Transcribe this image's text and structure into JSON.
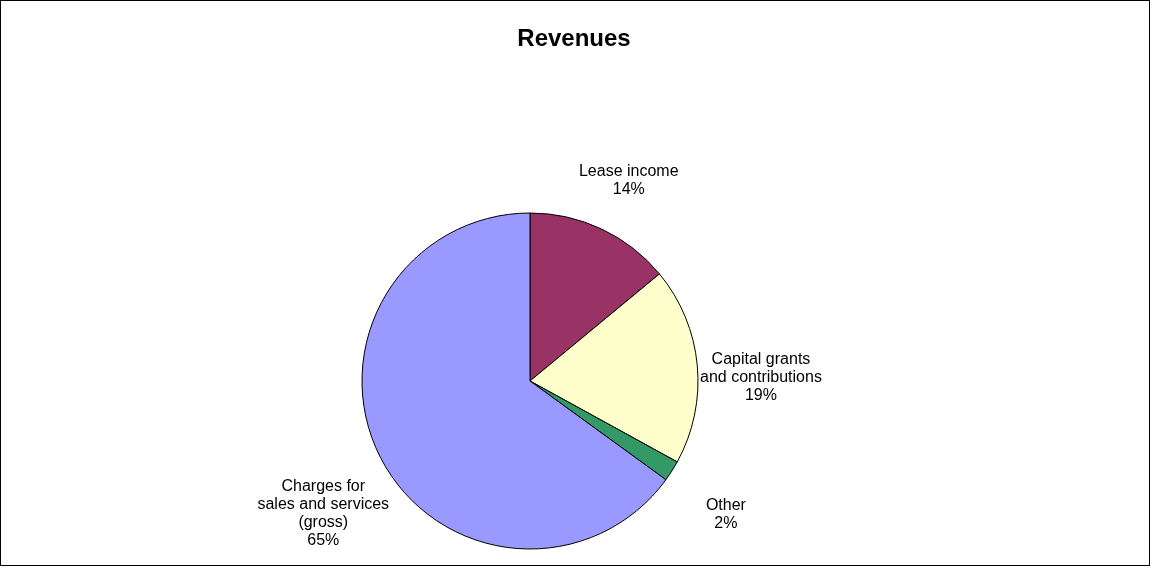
{
  "chart_data": {
    "type": "pie",
    "title": "Revenues",
    "categories": [
      "Lease income",
      "Capital grants\nand contributions",
      "Other",
      "Charges for\nsales and services\n(gross)"
    ],
    "values": [
      14,
      19,
      2,
      65
    ],
    "value_labels": [
      "14%",
      "19%",
      "2%",
      "65%"
    ],
    "colors": [
      "#993366",
      "#ffffcc",
      "#339966",
      "#9999ff"
    ],
    "legend": false
  }
}
